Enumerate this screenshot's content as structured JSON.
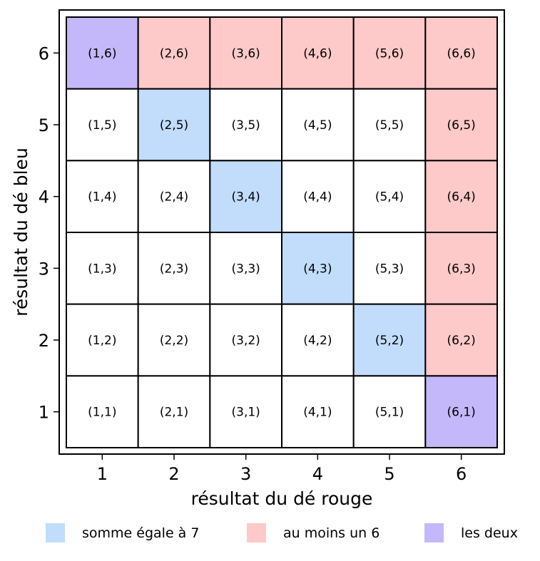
{
  "chart_data": {
    "type": "heatmap",
    "x_categories": [
      "1",
      "2",
      "3",
      "4",
      "5",
      "6"
    ],
    "y_categories": [
      "1",
      "2",
      "3",
      "4",
      "5",
      "6"
    ],
    "xlabel": "résultat du dé rouge",
    "ylabel": "résultat du dé bleu",
    "grid": true,
    "legend_placement": "bottom",
    "legend": [
      {
        "key": "sum7",
        "label": "somme égale à 7",
        "color": "#c2dcfc"
      },
      {
        "key": "six",
        "label": "au moins un 6",
        "color": "#fdc9c9"
      },
      {
        "key": "both",
        "label": "les deux",
        "color": "#c4b8fa"
      }
    ],
    "cells": [
      {
        "x": 1,
        "y": 6,
        "label": "(1,6)",
        "category": "both"
      },
      {
        "x": 2,
        "y": 6,
        "label": "(2,6)",
        "category": "six"
      },
      {
        "x": 3,
        "y": 6,
        "label": "(3,6)",
        "category": "six"
      },
      {
        "x": 4,
        "y": 6,
        "label": "(4,6)",
        "category": "six"
      },
      {
        "x": 5,
        "y": 6,
        "label": "(5,6)",
        "category": "six"
      },
      {
        "x": 6,
        "y": 6,
        "label": "(6,6)",
        "category": "six"
      },
      {
        "x": 1,
        "y": 5,
        "label": "(1,5)",
        "category": "none"
      },
      {
        "x": 2,
        "y": 5,
        "label": "(2,5)",
        "category": "sum7"
      },
      {
        "x": 3,
        "y": 5,
        "label": "(3,5)",
        "category": "none"
      },
      {
        "x": 4,
        "y": 5,
        "label": "(4,5)",
        "category": "none"
      },
      {
        "x": 5,
        "y": 5,
        "label": "(5,5)",
        "category": "none"
      },
      {
        "x": 6,
        "y": 5,
        "label": "(6,5)",
        "category": "six"
      },
      {
        "x": 1,
        "y": 4,
        "label": "(1,4)",
        "category": "none"
      },
      {
        "x": 2,
        "y": 4,
        "label": "(2,4)",
        "category": "none"
      },
      {
        "x": 3,
        "y": 4,
        "label": "(3,4)",
        "category": "sum7"
      },
      {
        "x": 4,
        "y": 4,
        "label": "(4,4)",
        "category": "none"
      },
      {
        "x": 5,
        "y": 4,
        "label": "(5,4)",
        "category": "none"
      },
      {
        "x": 6,
        "y": 4,
        "label": "(6,4)",
        "category": "six"
      },
      {
        "x": 1,
        "y": 3,
        "label": "(1,3)",
        "category": "none"
      },
      {
        "x": 2,
        "y": 3,
        "label": "(2,3)",
        "category": "none"
      },
      {
        "x": 3,
        "y": 3,
        "label": "(3,3)",
        "category": "none"
      },
      {
        "x": 4,
        "y": 3,
        "label": "(4,3)",
        "category": "sum7"
      },
      {
        "x": 5,
        "y": 3,
        "label": "(5,3)",
        "category": "none"
      },
      {
        "x": 6,
        "y": 3,
        "label": "(6,3)",
        "category": "six"
      },
      {
        "x": 1,
        "y": 2,
        "label": "(1,2)",
        "category": "none"
      },
      {
        "x": 2,
        "y": 2,
        "label": "(2,2)",
        "category": "none"
      },
      {
        "x": 3,
        "y": 2,
        "label": "(3,2)",
        "category": "none"
      },
      {
        "x": 4,
        "y": 2,
        "label": "(4,2)",
        "category": "none"
      },
      {
        "x": 5,
        "y": 2,
        "label": "(5,2)",
        "category": "sum7"
      },
      {
        "x": 6,
        "y": 2,
        "label": "(6,2)",
        "category": "six"
      },
      {
        "x": 1,
        "y": 1,
        "label": "(1,1)",
        "category": "none"
      },
      {
        "x": 2,
        "y": 1,
        "label": "(2,1)",
        "category": "none"
      },
      {
        "x": 3,
        "y": 1,
        "label": "(3,1)",
        "category": "none"
      },
      {
        "x": 4,
        "y": 1,
        "label": "(4,1)",
        "category": "none"
      },
      {
        "x": 5,
        "y": 1,
        "label": "(5,1)",
        "category": "none"
      },
      {
        "x": 6,
        "y": 1,
        "label": "(6,1)",
        "category": "both"
      }
    ]
  }
}
